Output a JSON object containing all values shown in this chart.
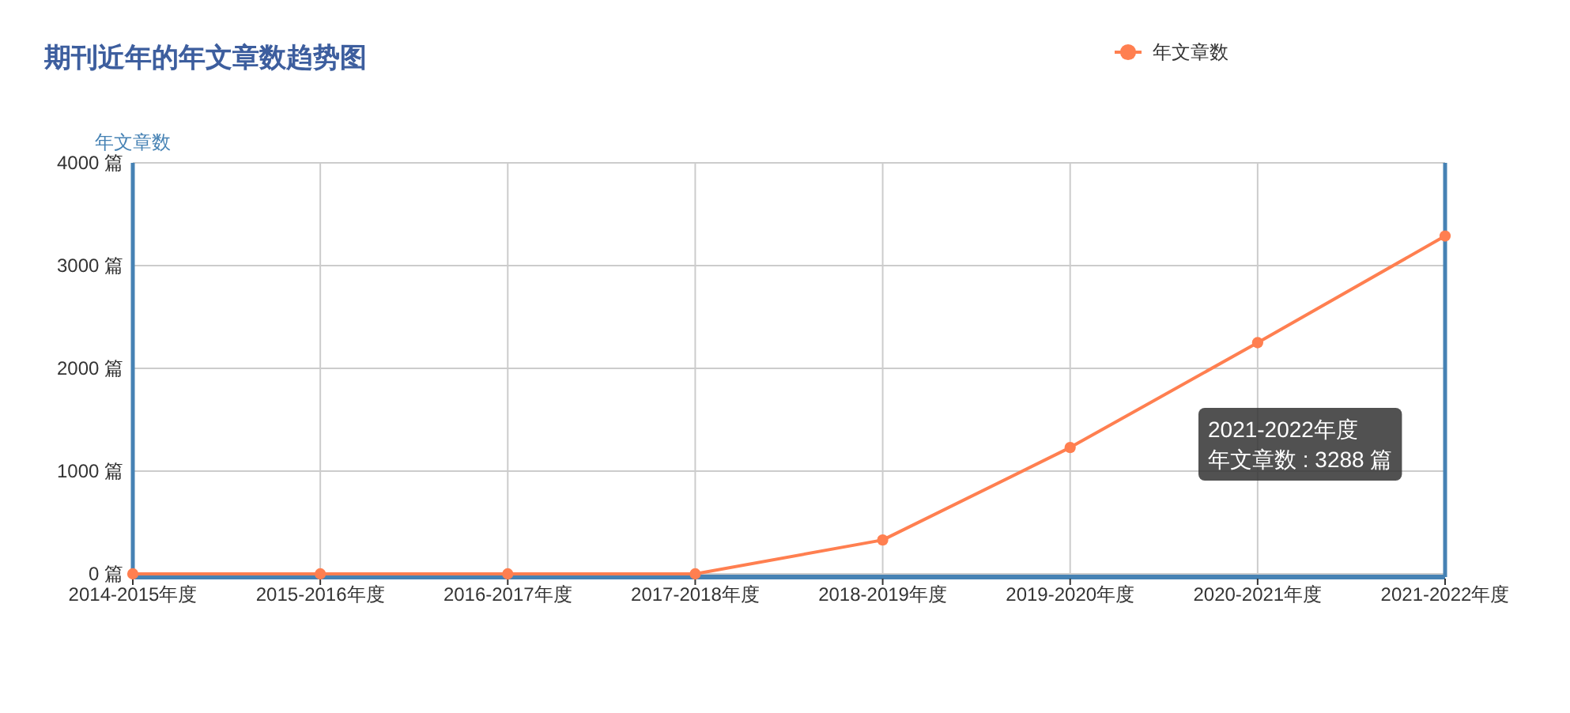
{
  "chart_data": {
    "type": "line",
    "title": "期刊近年的年文章数趋势图",
    "ylabel": "年文章数",
    "categories": [
      "2014-2015年度",
      "2015-2016年度",
      "2016-2017年度",
      "2017-2018年度",
      "2018-2019年度",
      "2019-2020年度",
      "2020-2021年度",
      "2021-2022年度"
    ],
    "series": [
      {
        "name": "年文章数",
        "color": "#ff7f50",
        "values": [
          0,
          0,
          0,
          0,
          330,
          1230,
          2250,
          3288
        ]
      }
    ],
    "ylim": [
      0,
      4000
    ],
    "yticks": [
      {
        "value": 0,
        "label": "0 篇"
      },
      {
        "value": 1000,
        "label": "1000 篇"
      },
      {
        "value": 2000,
        "label": "2000 篇"
      },
      {
        "value": 3000,
        "label": "3000 篇"
      },
      {
        "value": 4000,
        "label": "4000 篇"
      }
    ],
    "grid": true,
    "legend": "top right",
    "marker": "circle",
    "line_style": "solid",
    "annotations": [
      "2021-2022年度",
      "年文章数 : 3288 篇"
    ]
  }
}
